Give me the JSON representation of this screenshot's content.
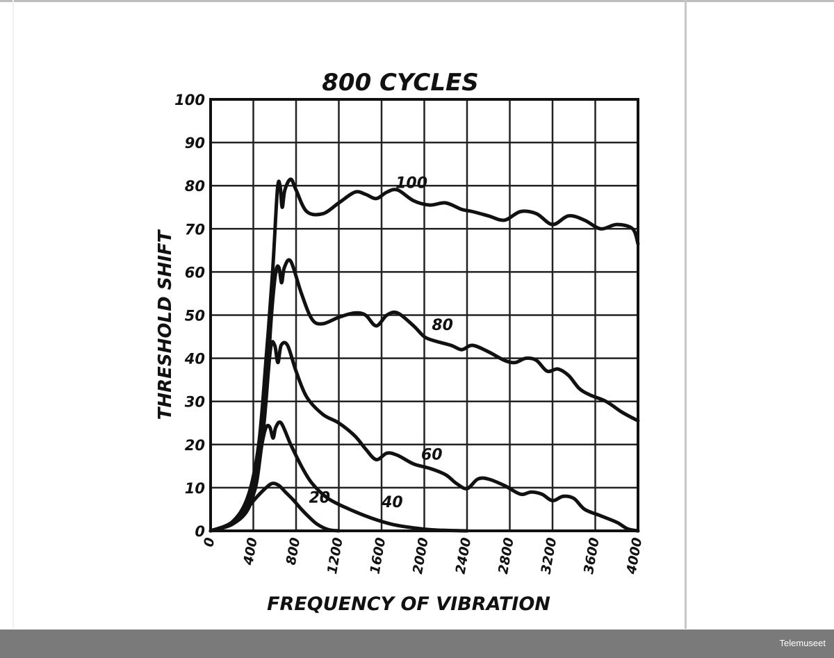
{
  "chart_data": {
    "type": "line",
    "title": "800 CYCLES",
    "xlabel": "FREQUENCY OF VIBRATION",
    "ylabel": "THRESHOLD SHIFT",
    "xlim": [
      0,
      4000
    ],
    "ylim": [
      0,
      100
    ],
    "x_ticks": [
      0,
      400,
      800,
      1200,
      1600,
      2000,
      2400,
      2800,
      3200,
      3600,
      4000
    ],
    "y_ticks": [
      0,
      10,
      20,
      30,
      40,
      50,
      60,
      70,
      80,
      90,
      100
    ],
    "grid": true,
    "series": [
      {
        "name": "100",
        "points": [
          [
            0,
            0
          ],
          [
            200,
            2
          ],
          [
            350,
            8
          ],
          [
            450,
            20
          ],
          [
            520,
            40
          ],
          [
            580,
            60
          ],
          [
            625,
            79
          ],
          [
            650,
            80
          ],
          [
            670,
            75
          ],
          [
            695,
            79
          ],
          [
            750,
            81.5
          ],
          [
            800,
            79
          ],
          [
            900,
            74
          ],
          [
            1050,
            73.5
          ],
          [
            1200,
            76
          ],
          [
            1350,
            78.5
          ],
          [
            1450,
            78
          ],
          [
            1550,
            77
          ],
          [
            1650,
            78.5
          ],
          [
            1750,
            79
          ],
          [
            1900,
            76.5
          ],
          [
            2050,
            75.5
          ],
          [
            2200,
            76
          ],
          [
            2350,
            74.5
          ],
          [
            2450,
            74
          ],
          [
            2600,
            73
          ],
          [
            2750,
            72
          ],
          [
            2900,
            74
          ],
          [
            3050,
            73.5
          ],
          [
            3200,
            71
          ],
          [
            3350,
            73
          ],
          [
            3500,
            72
          ],
          [
            3650,
            70
          ],
          [
            3800,
            71
          ],
          [
            3950,
            70
          ],
          [
            4000,
            66.5
          ]
        ]
      },
      {
        "name": "80",
        "points": [
          [
            0,
            0
          ],
          [
            200,
            2
          ],
          [
            350,
            7
          ],
          [
            450,
            16
          ],
          [
            520,
            32
          ],
          [
            570,
            50
          ],
          [
            610,
            60
          ],
          [
            640,
            61
          ],
          [
            665,
            57.5
          ],
          [
            690,
            61
          ],
          [
            750,
            62.5
          ],
          [
            850,
            55
          ],
          [
            950,
            49
          ],
          [
            1050,
            48
          ],
          [
            1200,
            49.5
          ],
          [
            1350,
            50.5
          ],
          [
            1450,
            50
          ],
          [
            1550,
            47.5
          ],
          [
            1650,
            50
          ],
          [
            1750,
            50.5
          ],
          [
            1900,
            47.5
          ],
          [
            2000,
            45
          ],
          [
            2100,
            44
          ],
          [
            2250,
            43
          ],
          [
            2350,
            42
          ],
          [
            2450,
            43
          ],
          [
            2600,
            41.5
          ],
          [
            2750,
            39.5
          ],
          [
            2850,
            39
          ],
          [
            2950,
            40
          ],
          [
            3050,
            39.5
          ],
          [
            3150,
            37
          ],
          [
            3250,
            37.5
          ],
          [
            3350,
            36
          ],
          [
            3450,
            33
          ],
          [
            3550,
            31.5
          ],
          [
            3700,
            30
          ],
          [
            3850,
            27.5
          ],
          [
            4000,
            25.5
          ]
        ]
      },
      {
        "name": "60",
        "points": [
          [
            0,
            0
          ],
          [
            200,
            1.5
          ],
          [
            350,
            5
          ],
          [
            430,
            12
          ],
          [
            500,
            25
          ],
          [
            560,
            42
          ],
          [
            600,
            43
          ],
          [
            630,
            39
          ],
          [
            660,
            43
          ],
          [
            720,
            43
          ],
          [
            800,
            37
          ],
          [
            900,
            31
          ],
          [
            1050,
            27
          ],
          [
            1200,
            25
          ],
          [
            1350,
            22
          ],
          [
            1450,
            19
          ],
          [
            1550,
            16.5
          ],
          [
            1650,
            18
          ],
          [
            1750,
            17.5
          ],
          [
            1900,
            15.5
          ],
          [
            2050,
            14.5
          ],
          [
            2200,
            13
          ],
          [
            2300,
            11
          ],
          [
            2400,
            9.8
          ],
          [
            2500,
            12
          ],
          [
            2600,
            12
          ],
          [
            2750,
            10.5
          ],
          [
            2900,
            8.5
          ],
          [
            3000,
            9
          ],
          [
            3100,
            8.5
          ],
          [
            3200,
            7
          ],
          [
            3300,
            8
          ],
          [
            3400,
            7.5
          ],
          [
            3500,
            5
          ],
          [
            3650,
            3.5
          ],
          [
            3800,
            2
          ],
          [
            3900,
            0.5
          ],
          [
            4000,
            0
          ]
        ]
      },
      {
        "name": "40",
        "points": [
          [
            0,
            0
          ],
          [
            200,
            1.5
          ],
          [
            320,
            4.5
          ],
          [
            420,
            10
          ],
          [
            480,
            20
          ],
          [
            520,
            24
          ],
          [
            555,
            24
          ],
          [
            585,
            21.5
          ],
          [
            610,
            24
          ],
          [
            660,
            25
          ],
          [
            750,
            20
          ],
          [
            850,
            15
          ],
          [
            950,
            11
          ],
          [
            1100,
            7.5
          ],
          [
            1300,
            5
          ],
          [
            1500,
            3
          ],
          [
            1700,
            1.5
          ],
          [
            1900,
            0.7
          ],
          [
            2100,
            0.2
          ],
          [
            2400,
            0
          ]
        ]
      },
      {
        "name": "20",
        "points": [
          [
            0,
            0
          ],
          [
            200,
            1.5
          ],
          [
            320,
            4.5
          ],
          [
            420,
            7.5
          ],
          [
            520,
            10
          ],
          [
            580,
            11
          ],
          [
            640,
            10.5
          ],
          [
            700,
            9
          ],
          [
            780,
            7
          ],
          [
            850,
            5
          ],
          [
            930,
            3
          ],
          [
            1000,
            1.5
          ],
          [
            1100,
            0.3
          ],
          [
            1200,
            0
          ]
        ]
      }
    ],
    "annotations": [
      {
        "text": "100",
        "x": 1880,
        "y": 79.5
      },
      {
        "text": "80",
        "x": 2170,
        "y": 46.5
      },
      {
        "text": "60",
        "x": 2070,
        "y": 16.5
      },
      {
        "text": "40",
        "x": 1700,
        "y": 5.5
      },
      {
        "text": "20",
        "x": 1020,
        "y": 6.5
      }
    ]
  },
  "footer": {
    "credit": "Telemuseet"
  }
}
